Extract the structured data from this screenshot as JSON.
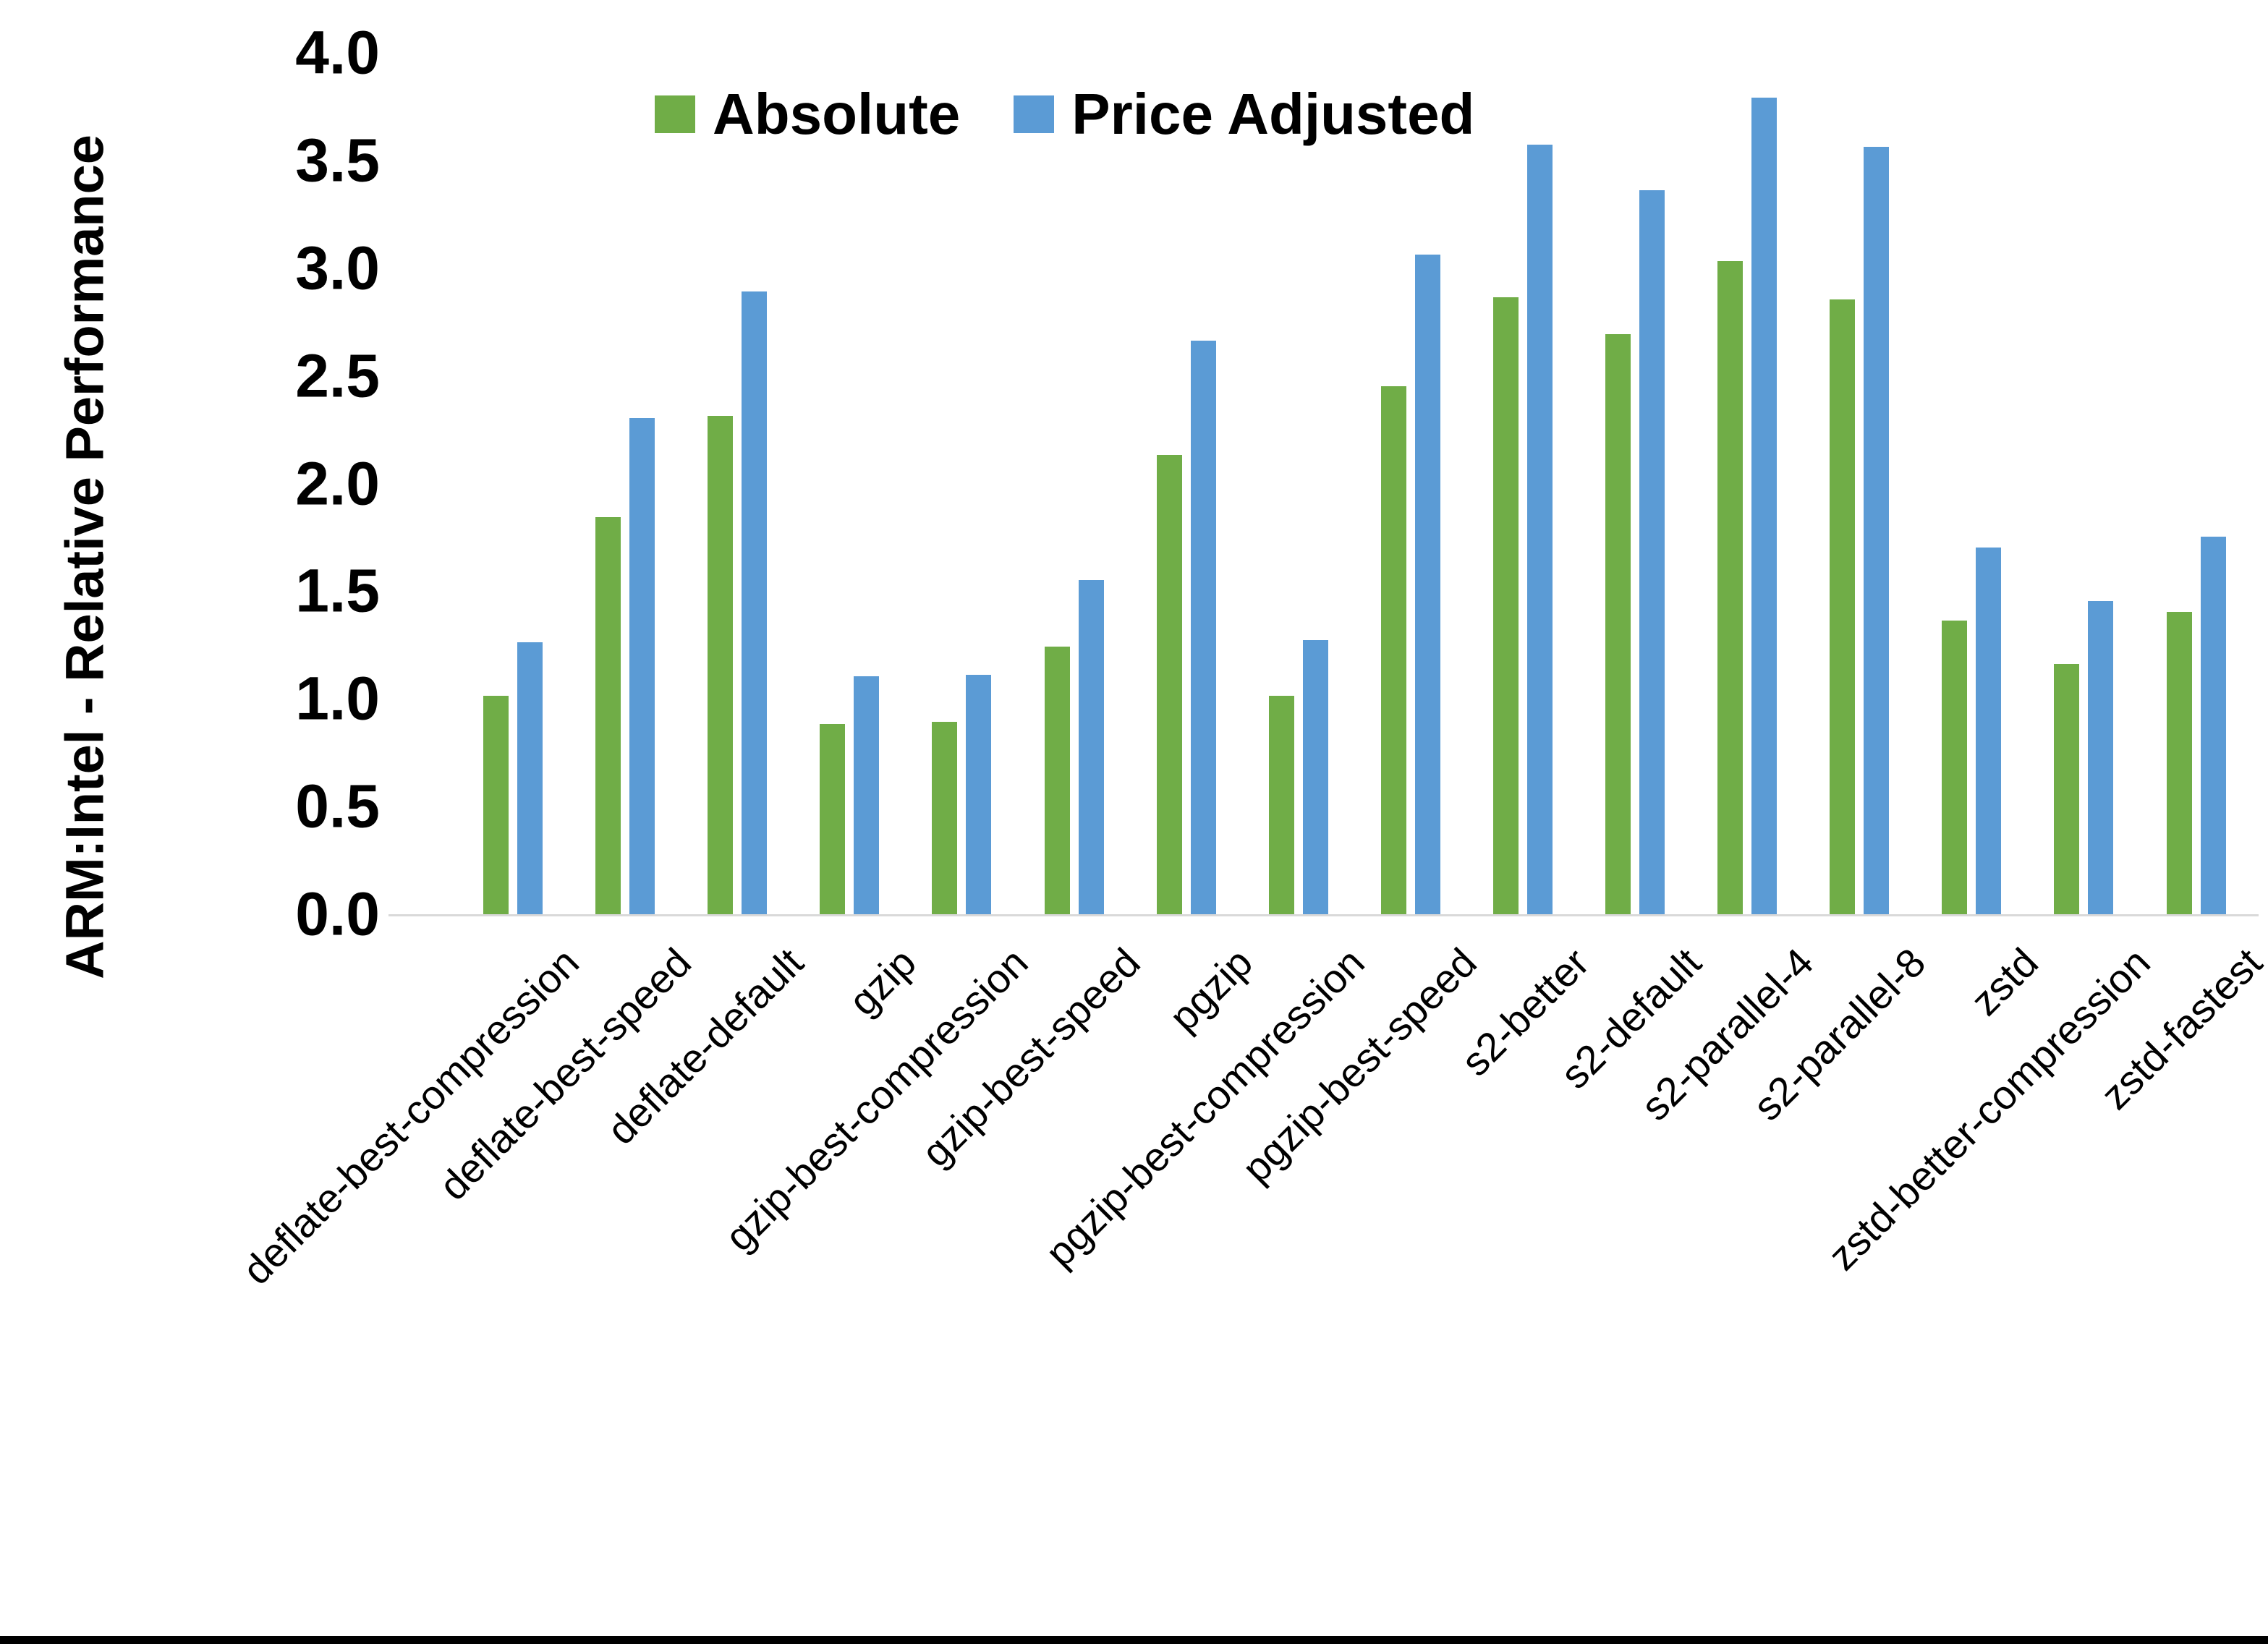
{
  "chart_data": {
    "type": "bar",
    "title": "",
    "ylabel": "ARM:Intel - Relative Performance",
    "xlabel": "",
    "ylim": [
      0.0,
      4.0
    ],
    "ytick_step": 0.5,
    "yticks": [
      "0.0",
      "0.5",
      "1.0",
      "1.5",
      "2.0",
      "2.5",
      "3.0",
      "3.5",
      "4.0"
    ],
    "grid": false,
    "legend_position": "top-center",
    "background_color": "#ffffff",
    "axis_line_color": "#d9d9d9",
    "text_color": "#000000",
    "bottom_border_color": "#000000",
    "categories": [
      "deflate-best-compression",
      "deflate-best-speed",
      "deflate-default",
      "gzip",
      "gzip-best-compression",
      "gzip-best-speed",
      "pgzip",
      "pgzip-best-compression",
      "pgzip-best-speed",
      "s2-better",
      "s2-default",
      "s2-parallel-4",
      "s2-parallel-8",
      "zstd",
      "zstd-better-compression",
      "zstd-fastest"
    ],
    "series": [
      {
        "name": "Absolute",
        "color": "#70AD47",
        "values": [
          1.02,
          1.85,
          2.32,
          0.89,
          0.9,
          1.25,
          2.14,
          1.02,
          2.46,
          2.87,
          2.7,
          3.04,
          2.86,
          1.37,
          1.17,
          1.41
        ]
      },
      {
        "name": "Price Adjusted",
        "color": "#5B9BD5",
        "values": [
          1.27,
          2.31,
          2.9,
          1.11,
          1.12,
          1.56,
          2.67,
          1.28,
          3.07,
          3.58,
          3.37,
          3.8,
          3.57,
          1.71,
          1.46,
          1.76
        ]
      }
    ]
  }
}
